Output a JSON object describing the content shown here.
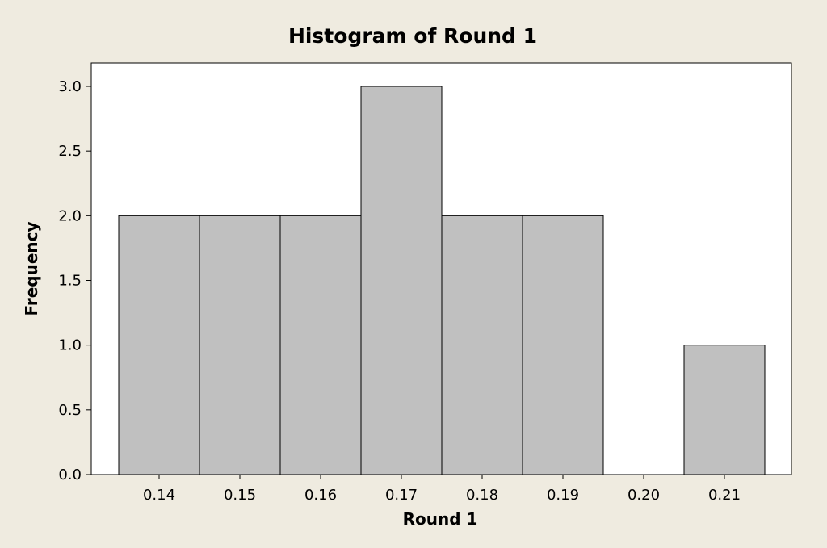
{
  "chart_data": {
    "type": "bar",
    "title": "Histogram of Round 1",
    "xlabel": "Round 1",
    "ylabel": "Frequency",
    "categories": [
      "0.14",
      "0.15",
      "0.16",
      "0.17",
      "0.18",
      "0.19",
      "0.20",
      "0.21"
    ],
    "values": [
      2,
      2,
      2,
      3,
      2,
      2,
      0,
      1
    ],
    "ylim": [
      0,
      3.0
    ],
    "yticks": [
      "0.0",
      "0.5",
      "1.0",
      "1.5",
      "2.0",
      "2.5",
      "3.0"
    ],
    "grid": false,
    "colors": {
      "bar": "#c0c0c0",
      "background": "#efebe0",
      "plot_area": "#ffffff"
    }
  }
}
